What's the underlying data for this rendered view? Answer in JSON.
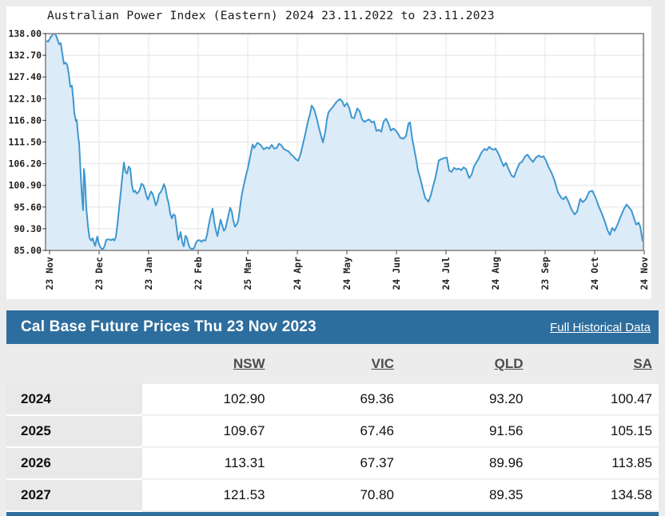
{
  "page": {
    "background": "#ececec",
    "panel_background": "#ffffff"
  },
  "chart_data": {
    "type": "area",
    "title": "Australian Power Index (Eastern) 2024 23.11.2022 to 23.11.2023",
    "y_ticks": [
      "138.00",
      "132.70",
      "127.40",
      "122.10",
      "116.80",
      "111.50",
      "106.20",
      "100.90",
      "95.60",
      "90.30",
      "85.00"
    ],
    "y_range": [
      85,
      138
    ],
    "x_tick_labels": [
      "23 Nov",
      "23 Dec",
      "23 Jan",
      "22 Feb",
      "25 Mar",
      "24 Apr",
      "24 May",
      "24 Jun",
      "24 Jul",
      "24 Aug",
      "23 Sep",
      "24 Oct",
      "24 Nov"
    ],
    "x_range_dates": "23.11.2022 to 23.11.2023",
    "grid": true,
    "legend": "none",
    "line_color": "#3e97cf",
    "fill_color": "#dcebf8",
    "points": [
      [
        57,
        136.3
      ],
      [
        60,
        136.0
      ],
      [
        62,
        136.6
      ],
      [
        64,
        137.3
      ],
      [
        66,
        137.8
      ],
      [
        68,
        138.2
      ],
      [
        70,
        137.6
      ],
      [
        72,
        136.5
      ],
      [
        74,
        135.4
      ],
      [
        76,
        135.7
      ],
      [
        78,
        133.0
      ],
      [
        80,
        130.6
      ],
      [
        82,
        130.9
      ],
      [
        84,
        130.4
      ],
      [
        86,
        128.2
      ],
      [
        88,
        125.0
      ],
      [
        90,
        125.3
      ],
      [
        92,
        121.2
      ],
      [
        93,
        118.5
      ],
      [
        95,
        116.6
      ],
      [
        96,
        116.9
      ],
      [
        98,
        112.5
      ],
      [
        99,
        111.2
      ],
      [
        101,
        103.5
      ],
      [
        102,
        100.0
      ],
      [
        103,
        97.0
      ],
      [
        104,
        94.8
      ],
      [
        105,
        104.9
      ],
      [
        106,
        103.0
      ],
      [
        107,
        99.5
      ],
      [
        108,
        95.4
      ],
      [
        110,
        91.0
      ],
      [
        112,
        88.0
      ],
      [
        114,
        87.4
      ],
      [
        116,
        88.0
      ],
      [
        117,
        87.2
      ],
      [
        119,
        86.1
      ],
      [
        121,
        87.9
      ],
      [
        122,
        88.4
      ],
      [
        123,
        87.0
      ],
      [
        125,
        86.0
      ],
      [
        127,
        85.4
      ],
      [
        129,
        85.3
      ],
      [
        131,
        86.2
      ],
      [
        133,
        87.6
      ],
      [
        136,
        87.7
      ],
      [
        139,
        87.5
      ],
      [
        141,
        87.8
      ],
      [
        143,
        87.4
      ],
      [
        145,
        88.3
      ],
      [
        147,
        91.5
      ],
      [
        149,
        95.3
      ],
      [
        151,
        99.0
      ],
      [
        153,
        103.0
      ],
      [
        155,
        106.5
      ],
      [
        157,
        104.2
      ],
      [
        159,
        103.8
      ],
      [
        161,
        105.5
      ],
      [
        163,
        105.0
      ],
      [
        165,
        101.0
      ],
      [
        167,
        99.3
      ],
      [
        169,
        99.6
      ],
      [
        171,
        98.9
      ],
      [
        173,
        99.2
      ],
      [
        175,
        99.9
      ],
      [
        177,
        101.3
      ],
      [
        179,
        101.0
      ],
      [
        181,
        100.1
      ],
      [
        183,
        98.5
      ],
      [
        185,
        97.4
      ],
      [
        187,
        98.4
      ],
      [
        189,
        99.4
      ],
      [
        191,
        98.8
      ],
      [
        193,
        97.5
      ],
      [
        195,
        96.0
      ],
      [
        197,
        97.0
      ],
      [
        199,
        98.8
      ],
      [
        201,
        99.2
      ],
      [
        203,
        100.0
      ],
      [
        205,
        101.2
      ],
      [
        207,
        100.2
      ],
      [
        209,
        98.0
      ],
      [
        211,
        96.5
      ],
      [
        213,
        94.0
      ],
      [
        215,
        92.8
      ],
      [
        217,
        93.8
      ],
      [
        219,
        93.5
      ],
      [
        221,
        90.5
      ],
      [
        223,
        87.6
      ],
      [
        225,
        88.6
      ],
      [
        226,
        89.5
      ],
      [
        228,
        87.0
      ],
      [
        230,
        86.0
      ],
      [
        232,
        88.6
      ],
      [
        234,
        88.0
      ],
      [
        236,
        86.3
      ],
      [
        238,
        85.5
      ],
      [
        241,
        85.4
      ],
      [
        243,
        85.6
      ],
      [
        245,
        86.8
      ],
      [
        247,
        87.4
      ],
      [
        250,
        87.5
      ],
      [
        252,
        87.1
      ],
      [
        254,
        87.5
      ],
      [
        257,
        87.4
      ],
      [
        259,
        88.8
      ],
      [
        261,
        91.0
      ],
      [
        263,
        93.0
      ],
      [
        266,
        95.2
      ],
      [
        268,
        92.0
      ],
      [
        270,
        90.0
      ],
      [
        272,
        88.5
      ],
      [
        274,
        90.5
      ],
      [
        276,
        92.5
      ],
      [
        278,
        91.2
      ],
      [
        280,
        89.8
      ],
      [
        282,
        90.3
      ],
      [
        284,
        92.0
      ],
      [
        286,
        93.8
      ],
      [
        288,
        95.4
      ],
      [
        290,
        94.5
      ],
      [
        292,
        92.2
      ],
      [
        294,
        90.8
      ],
      [
        296,
        91.3
      ],
      [
        298,
        92.2
      ],
      [
        300,
        95.0
      ],
      [
        302,
        98.0
      ],
      [
        305,
        101.0
      ],
      [
        308,
        103.5
      ],
      [
        310,
        105.0
      ],
      [
        313,
        108.0
      ],
      [
        316,
        110.9
      ],
      [
        318,
        110.0
      ],
      [
        322,
        111.3
      ],
      [
        326,
        110.8
      ],
      [
        330,
        109.7
      ],
      [
        334,
        110.2
      ],
      [
        337,
        109.9
      ],
      [
        340,
        110.8
      ],
      [
        343,
        109.9
      ],
      [
        346,
        110.0
      ],
      [
        349,
        111.1
      ],
      [
        352,
        110.7
      ],
      [
        355,
        109.8
      ],
      [
        358,
        109.5
      ],
      [
        361,
        109.2
      ],
      [
        364,
        108.5
      ],
      [
        367,
        108.0
      ],
      [
        370,
        107.3
      ],
      [
        373,
        106.9
      ],
      [
        376,
        108.5
      ],
      [
        379,
        111.0
      ],
      [
        382,
        113.5
      ],
      [
        385,
        116.3
      ],
      [
        388,
        118.5
      ],
      [
        390,
        120.4
      ],
      [
        393,
        119.5
      ],
      [
        396,
        117.5
      ],
      [
        399,
        115.0
      ],
      [
        402,
        112.8
      ],
      [
        404,
        111.4
      ],
      [
        407,
        114.0
      ],
      [
        409,
        117.0
      ],
      [
        411,
        118.8
      ],
      [
        414,
        119.5
      ],
      [
        418,
        120.5
      ],
      [
        421,
        121.3
      ],
      [
        425,
        122.0
      ],
      [
        428,
        121.5
      ],
      [
        431,
        120.2
      ],
      [
        434,
        121.0
      ],
      [
        437,
        119.8
      ],
      [
        440,
        117.5
      ],
      [
        443,
        117.3
      ],
      [
        447,
        119.7
      ],
      [
        450,
        119.0
      ],
      [
        453,
        117.0
      ],
      [
        456,
        116.4
      ],
      [
        459,
        116.8
      ],
      [
        462,
        117.0
      ],
      [
        465,
        116.3
      ],
      [
        468,
        116.5
      ],
      [
        471,
        114.2
      ],
      [
        474,
        114.5
      ],
      [
        477,
        114.0
      ],
      [
        480,
        116.5
      ],
      [
        483,
        117.2
      ],
      [
        486,
        116.0
      ],
      [
        489,
        114.3
      ],
      [
        492,
        114.8
      ],
      [
        495,
        114.4
      ],
      [
        498,
        113.5
      ],
      [
        501,
        112.5
      ],
      [
        505,
        112.3
      ],
      [
        508,
        113.0
      ],
      [
        511,
        116.0
      ],
      [
        513,
        116.3
      ],
      [
        516,
        112.0
      ],
      [
        520,
        108.0
      ],
      [
        523,
        104.5
      ],
      [
        526,
        102.5
      ],
      [
        529,
        100.0
      ],
      [
        532,
        97.8
      ],
      [
        536,
        96.9
      ],
      [
        539,
        98.5
      ],
      [
        541,
        100.0
      ],
      [
        545,
        103.0
      ],
      [
        549,
        107.0
      ],
      [
        552,
        107.3
      ],
      [
        556,
        107.6
      ],
      [
        559,
        107.7
      ],
      [
        562,
        104.5
      ],
      [
        565,
        104.2
      ],
      [
        568,
        105.2
      ],
      [
        571,
        104.8
      ],
      [
        574,
        105.0
      ],
      [
        577,
        104.6
      ],
      [
        580,
        105.3
      ],
      [
        583,
        104.9
      ],
      [
        587,
        102.7
      ],
      [
        590,
        103.5
      ],
      [
        593,
        105.5
      ],
      [
        596,
        106.5
      ],
      [
        599,
        107.5
      ],
      [
        602,
        108.8
      ],
      [
        606,
        109.8
      ],
      [
        609,
        109.5
      ],
      [
        612,
        110.3
      ],
      [
        615,
        109.8
      ],
      [
        618,
        109.6
      ],
      [
        620,
        109.9
      ],
      [
        624,
        108.5
      ],
      [
        627,
        107.0
      ],
      [
        630,
        105.6
      ],
      [
        633,
        106.4
      ],
      [
        636,
        105.0
      ],
      [
        640,
        103.3
      ],
      [
        643,
        102.9
      ],
      [
        646,
        104.5
      ],
      [
        650,
        106.3
      ],
      [
        653,
        106.6
      ],
      [
        657,
        108.0
      ],
      [
        660,
        108.4
      ],
      [
        663,
        107.5
      ],
      [
        667,
        106.6
      ],
      [
        670,
        107.6
      ],
      [
        674,
        108.2
      ],
      [
        677,
        107.8
      ],
      [
        680,
        108.0
      ],
      [
        683,
        107.0
      ],
      [
        686,
        105.5
      ],
      [
        690,
        104.0
      ],
      [
        694,
        102.0
      ],
      [
        698,
        99.2
      ],
      [
        702,
        97.9
      ],
      [
        705,
        97.5
      ],
      [
        708,
        98.2
      ],
      [
        711,
        97.0
      ],
      [
        715,
        95.0
      ],
      [
        719,
        93.8
      ],
      [
        722,
        94.5
      ],
      [
        726,
        97.6
      ],
      [
        729,
        96.8
      ],
      [
        733,
        97.5
      ],
      [
        737,
        99.3
      ],
      [
        741,
        99.6
      ],
      [
        745,
        98.0
      ],
      [
        749,
        95.8
      ],
      [
        753,
        94.0
      ],
      [
        757,
        91.9
      ],
      [
        760,
        90.0
      ],
      [
        763,
        88.8
      ],
      [
        766,
        90.5
      ],
      [
        769,
        89.8
      ],
      [
        773,
        91.5
      ],
      [
        777,
        93.5
      ],
      [
        781,
        95.3
      ],
      [
        784,
        96.2
      ],
      [
        787,
        95.5
      ],
      [
        790,
        94.8
      ],
      [
        793,
        93.0
      ],
      [
        796,
        91.3
      ],
      [
        799,
        91.8
      ],
      [
        801,
        90.8
      ],
      [
        804,
        87.3
      ],
      [
        806,
        87.9
      ]
    ]
  },
  "table": {
    "title": "Cal Base Future Prices Thu 23 Nov 2023",
    "link_label": "Full Historical Data",
    "header_bg": "#2e6e9e",
    "columns": [
      "NSW",
      "VIC",
      "QLD",
      "SA"
    ],
    "rows": [
      {
        "year": "2024",
        "values": [
          "102.90",
          "69.36",
          "93.20",
          "100.47"
        ]
      },
      {
        "year": "2025",
        "values": [
          "109.67",
          "67.46",
          "91.56",
          "105.15"
        ]
      },
      {
        "year": "2026",
        "values": [
          "113.31",
          "67.37",
          "89.96",
          "113.85"
        ]
      },
      {
        "year": "2027",
        "values": [
          "121.53",
          "70.80",
          "89.35",
          "134.58"
        ]
      }
    ]
  }
}
